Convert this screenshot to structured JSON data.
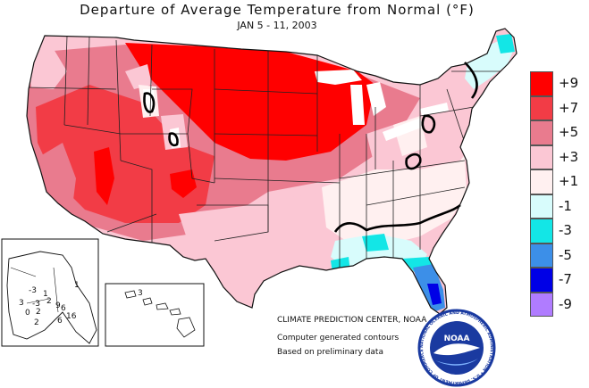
{
  "title": "Departure of Average Temperature from Normal (°F)",
  "subtitle": "JAN 5 - 11, 2003",
  "legend": [
    {
      "label": "+9",
      "color": "#ff0000"
    },
    {
      "label": "+7",
      "color": "#f23c46"
    },
    {
      "label": "+5",
      "color": "#e97b8e"
    },
    {
      "label": "+3",
      "color": "#fbc7d4"
    },
    {
      "label": "+1",
      "color": "#fff0f0"
    },
    {
      "label": "-1",
      "color": "#d8fcfc"
    },
    {
      "label": "-3",
      "color": "#13e6e6"
    },
    {
      "label": "-5",
      "color": "#3c8fe8"
    },
    {
      "label": "-7",
      "color": "#0000e6"
    },
    {
      "label": "-9",
      "color": "#b07cff"
    }
  ],
  "credits": {
    "line1": "CLIMATE PREDICTION CENTER, NOAA",
    "line2": "Computer generated contours",
    "line3": "Based on preliminary data"
  },
  "logo": {
    "text": "NOAA",
    "ring_text": "NATIONAL OCEANIC AND ATMOSPHERIC ADMINISTRATION • U.S. DEPARTMENT OF COMMERCE"
  },
  "alaska_labels": [
    "1",
    "-3",
    "2",
    "3",
    "-3",
    "0",
    "2",
    "16",
    "6",
    "9",
    "2",
    "1",
    "6"
  ],
  "hawaii_labels": [
    "3"
  ],
  "colors": {
    "plus9": "#ff0000",
    "plus7": "#f23c46",
    "plus5": "#e97b8e",
    "plus3": "#fbc7d4",
    "plus1": "#fff0f0",
    "minus1": "#d8fcfc",
    "minus3": "#13e6e6",
    "minus5": "#3c8fe8",
    "minus7": "#0000e6",
    "minus9": "#b07cff"
  }
}
